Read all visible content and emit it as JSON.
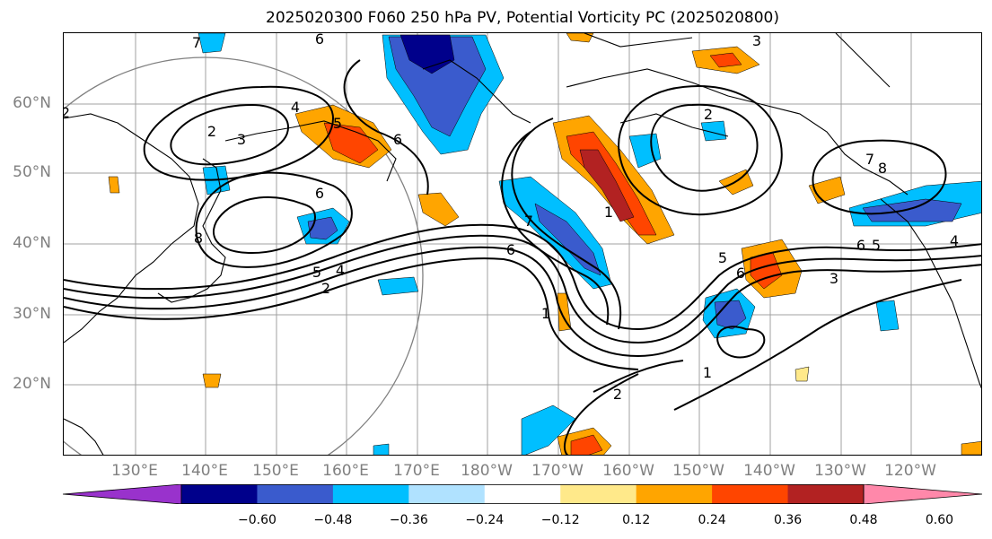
{
  "title": "2025020300 F060 250 hPa PV, Potential Vorticity PC (2025020800)",
  "lat_labels": [
    "60°N",
    "50°N",
    "40°N",
    "30°N",
    "20°N"
  ],
  "lon_labels": [
    "130°E",
    "140°E",
    "150°E",
    "160°E",
    "170°E",
    "180°W",
    "170°W",
    "160°W",
    "150°W",
    "140°W",
    "130°W",
    "120°W"
  ],
  "colorbar": {
    "ticks": [
      "−0.60",
      "−0.48",
      "−0.36",
      "−0.24",
      "−0.12",
      "0.12",
      "0.24",
      "0.36",
      "0.48",
      "0.60"
    ],
    "colors": [
      "#9932cc",
      "#00008b",
      "#3a5bcd",
      "#00bfff",
      "#b0e2ff",
      "#ffffff",
      "#ffe98a",
      "#ffa500",
      "#ff4500",
      "#b22222",
      "#ff88aa"
    ]
  },
  "contour_labels": [
    "7",
    "6",
    "3",
    "2",
    "3",
    "4",
    "6",
    "5",
    "6",
    "8",
    "5",
    "4",
    "2",
    "7",
    "6",
    "1",
    "2",
    "2",
    "5",
    "6",
    "1",
    "3",
    "4",
    "5",
    "6",
    "8",
    "7",
    "2",
    "1"
  ]
}
